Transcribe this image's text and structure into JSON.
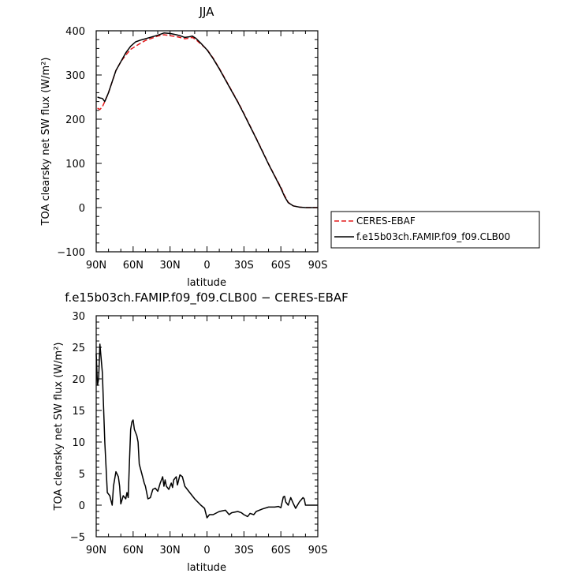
{
  "chart_data": [
    {
      "type": "line",
      "title": "JJA",
      "xlabel": "latitude",
      "ylabel": "TOA clearsky net SW flux (W/m²)",
      "x_tick_labels": [
        "90N",
        "60N",
        "30N",
        "0",
        "30S",
        "60S",
        "90S"
      ],
      "y_tick_labels": [
        "400",
        "300",
        "200",
        "100",
        "0",
        "−100"
      ],
      "xlim": [
        90,
        -90
      ],
      "ylim": [
        -100,
        400
      ],
      "legend_placement": "outside-right",
      "series": [
        {
          "name": "CERES-EBAF",
          "color": "#e41a1c",
          "style": "dashed",
          "points": [
            [
              89,
              225
            ],
            [
              87,
              222
            ],
            [
              85,
              228
            ],
            [
              83,
              240
            ],
            [
              80,
              260
            ],
            [
              77,
              285
            ],
            [
              74,
              310
            ],
            [
              70,
              330
            ],
            [
              66,
              345
            ],
            [
              62,
              358
            ],
            [
              58,
              365
            ],
            [
              54,
              372
            ],
            [
              50,
              378
            ],
            [
              45,
              383
            ],
            [
              40,
              388
            ],
            [
              35,
              391
            ],
            [
              30,
              389
            ],
            [
              25,
              387
            ],
            [
              22,
              385
            ],
            [
              18,
              382
            ],
            [
              15,
              383
            ],
            [
              12,
              385
            ],
            [
              9,
              380
            ],
            [
              5,
              370
            ],
            [
              0,
              358
            ],
            [
              -5,
              338
            ],
            [
              -10,
              315
            ],
            [
              -15,
              290
            ],
            [
              -20,
              265
            ],
            [
              -25,
              240
            ],
            [
              -30,
              213
            ],
            [
              -35,
              185
            ],
            [
              -40,
              157
            ],
            [
              -45,
              128
            ],
            [
              -50,
              99
            ],
            [
              -55,
              72
            ],
            [
              -60,
              46
            ],
            [
              -63,
              27
            ],
            [
              -66,
              12
            ],
            [
              -70,
              4
            ],
            [
              -75,
              1
            ],
            [
              -80,
              0
            ],
            [
              -90,
              0
            ]
          ]
        },
        {
          "name": "f.e15b03ch.FAMIP.f09_f09.CLB00",
          "color": "#000000",
          "style": "solid",
          "points": [
            [
              89,
              250
            ],
            [
              87,
              248
            ],
            [
              85,
              247
            ],
            [
              83,
              240
            ],
            [
              80,
              260
            ],
            [
              77,
              285
            ],
            [
              74,
              310
            ],
            [
              70,
              330
            ],
            [
              66,
              350
            ],
            [
              62,
              365
            ],
            [
              58,
              375
            ],
            [
              54,
              379
            ],
            [
              50,
              382
            ],
            [
              45,
              386
            ],
            [
              40,
              390
            ],
            [
              35,
              395
            ],
            [
              30,
              394
            ],
            [
              25,
              391
            ],
            [
              22,
              389
            ],
            [
              18,
              385
            ],
            [
              15,
              386
            ],
            [
              12,
              388
            ],
            [
              9,
              383
            ],
            [
              5,
              372
            ],
            [
              0,
              357
            ],
            [
              -5,
              337
            ],
            [
              -10,
              314
            ],
            [
              -15,
              289
            ],
            [
              -20,
              264
            ],
            [
              -25,
              239
            ],
            [
              -30,
              212
            ],
            [
              -35,
              184
            ],
            [
              -40,
              156
            ],
            [
              -45,
              127
            ],
            [
              -50,
              98
            ],
            [
              -55,
              71
            ],
            [
              -60,
              44
            ],
            [
              -63,
              25
            ],
            [
              -66,
              11
            ],
            [
              -70,
              4
            ],
            [
              -75,
              1
            ],
            [
              -80,
              0
            ],
            [
              -90,
              0
            ]
          ]
        }
      ]
    },
    {
      "type": "line",
      "title": "f.e15b03ch.FAMIP.f09_f09.CLB00 − CERES-EBAF",
      "xlabel": "latitude",
      "ylabel": "TOA clearsky net SW flux (W/m²)",
      "x_tick_labels": [
        "90N",
        "60N",
        "30N",
        "0",
        "30S",
        "60S",
        "90S"
      ],
      "y_tick_labels": [
        "30",
        "25",
        "20",
        "15",
        "10",
        "5",
        "0",
        "−5"
      ],
      "xlim": [
        90,
        -90
      ],
      "ylim": [
        -5,
        30
      ],
      "series": [
        {
          "color": "#000000",
          "style": "solid",
          "points": [
            [
              90,
              24
            ],
            [
              89,
              19
            ],
            [
              88,
              20
            ],
            [
              87,
              25.5
            ],
            [
              85,
              21
            ],
            [
              83,
              10
            ],
            [
              81,
              2
            ],
            [
              79,
              1.5
            ],
            [
              77,
              0
            ],
            [
              76,
              3
            ],
            [
              74,
              5.3
            ],
            [
              72,
              4.5
            ],
            [
              71,
              3
            ],
            [
              70,
              0.2
            ],
            [
              68,
              1.5
            ],
            [
              66,
              1
            ],
            [
              65,
              2
            ],
            [
              64,
              1.2
            ],
            [
              63,
              7
            ],
            [
              62,
              12
            ],
            [
              61,
              13.2
            ],
            [
              60,
              13.5
            ],
            [
              59,
              12
            ],
            [
              57,
              11
            ],
            [
              56,
              10
            ],
            [
              55,
              6.5
            ],
            [
              53,
              5
            ],
            [
              51,
              3.5
            ],
            [
              50,
              3
            ],
            [
              48,
              1
            ],
            [
              46,
              1.2
            ],
            [
              44,
              2.5
            ],
            [
              42,
              2.7
            ],
            [
              40,
              2.2
            ],
            [
              38,
              3.5
            ],
            [
              36,
              4.5
            ],
            [
              35,
              3
            ],
            [
              34,
              4
            ],
            [
              33,
              3
            ],
            [
              31,
              2.5
            ],
            [
              29,
              3.5
            ],
            [
              28,
              2.8
            ],
            [
              27,
              4
            ],
            [
              25,
              4.5
            ],
            [
              24,
              3.2
            ],
            [
              22,
              4.8
            ],
            [
              20,
              4.5
            ],
            [
              18,
              3
            ],
            [
              16,
              2.5
            ],
            [
              14,
              2
            ],
            [
              10,
              1
            ],
            [
              5,
              0
            ],
            [
              2,
              -0.5
            ],
            [
              0,
              -2
            ],
            [
              -2,
              -1.5
            ],
            [
              -5,
              -1.5
            ],
            [
              -10,
              -1
            ],
            [
              -15,
              -0.8
            ],
            [
              -18,
              -1.5
            ],
            [
              -20,
              -1.2
            ],
            [
              -25,
              -1
            ],
            [
              -28,
              -1.2
            ],
            [
              -30,
              -1.5
            ],
            [
              -33,
              -1.8
            ],
            [
              -35,
              -1.3
            ],
            [
              -38,
              -1.5
            ],
            [
              -40,
              -1
            ],
            [
              -45,
              -0.6
            ],
            [
              -50,
              -0.3
            ],
            [
              -55,
              -0.3
            ],
            [
              -58,
              -0.2
            ],
            [
              -60,
              -0.4
            ],
            [
              -62,
              1.3
            ],
            [
              -63,
              1.4
            ],
            [
              -64,
              0.5
            ],
            [
              -66,
              0
            ],
            [
              -68,
              1.2
            ],
            [
              -70,
              0.3
            ],
            [
              -72,
              -0.5
            ],
            [
              -75,
              0.5
            ],
            [
              -78,
              1.2
            ],
            [
              -79,
              1
            ],
            [
              -80,
              0
            ],
            [
              -90,
              0
            ]
          ]
        }
      ]
    }
  ]
}
